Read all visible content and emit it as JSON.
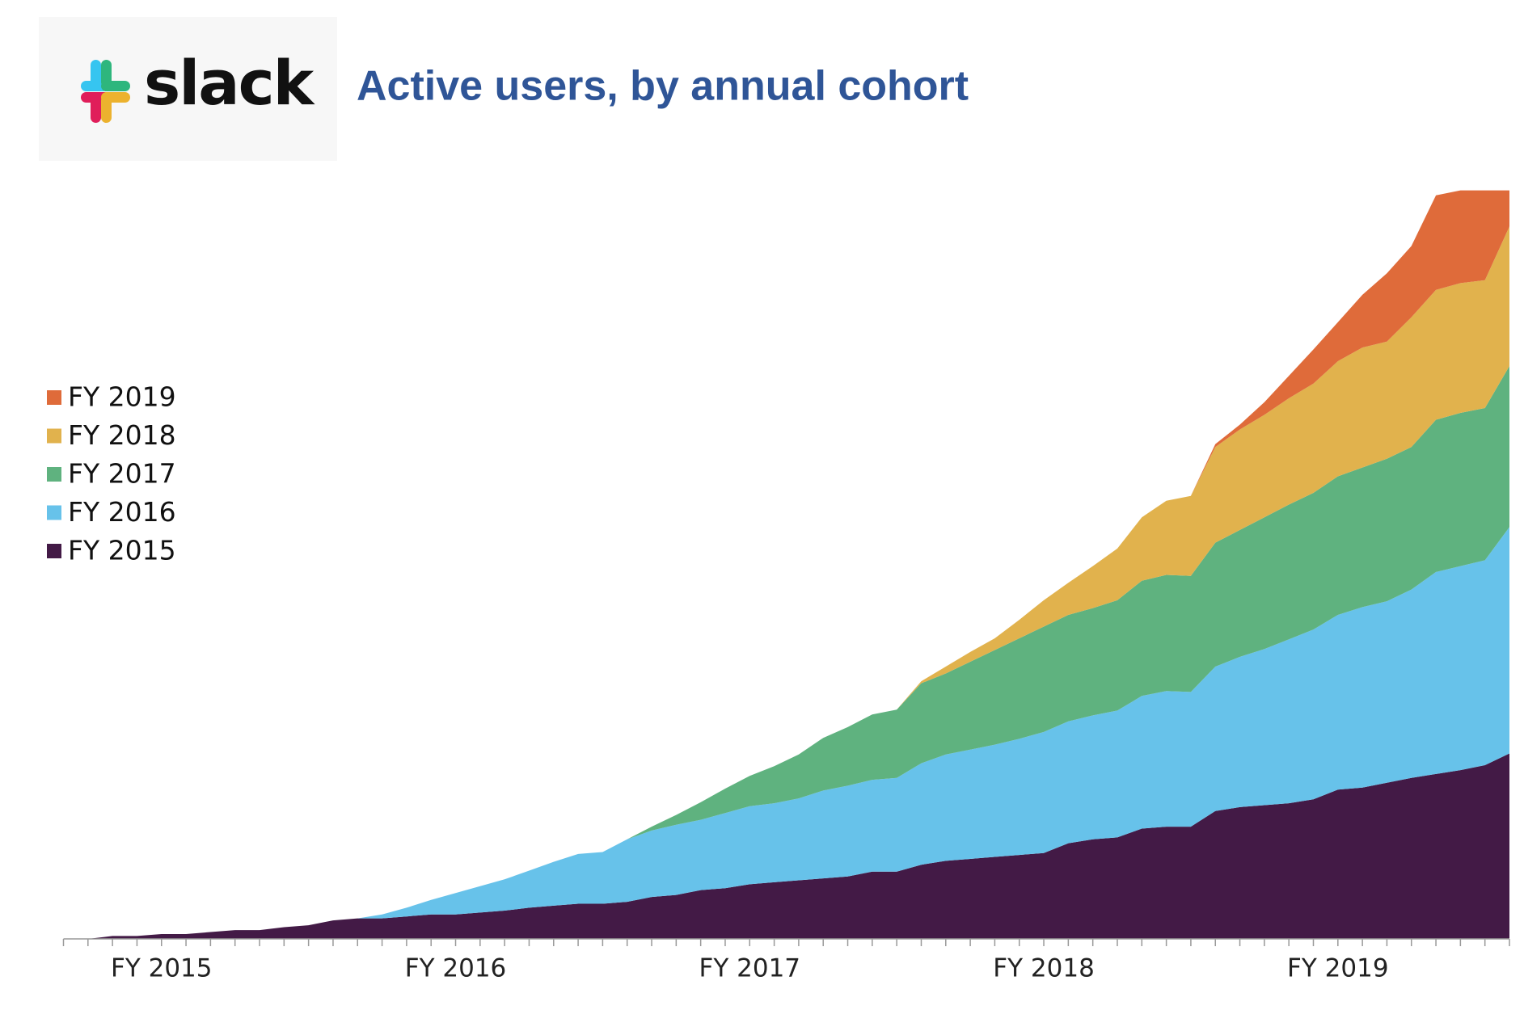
{
  "logo": "slack",
  "chart_data": {
    "type": "stacked_area",
    "title": "Active users, by annual cohort",
    "categories": [
      null,
      null,
      null,
      null,
      "FY 2015",
      null,
      null,
      null,
      null,
      null,
      null,
      null,
      null,
      null,
      null,
      null,
      "FY 2016",
      null,
      null,
      null,
      null,
      null,
      null,
      null,
      null,
      null,
      null,
      null,
      "FY 2017",
      null,
      null,
      null,
      null,
      null,
      null,
      null,
      null,
      null,
      null,
      null,
      "FY 2018",
      null,
      null,
      null,
      null,
      null,
      null,
      null,
      null,
      null,
      null,
      null,
      "FY 2019",
      null,
      null,
      null,
      null,
      null,
      null,
      null
    ],
    "ylim": [
      0,
      770
    ],
    "legend": "left",
    "series": [
      {
        "name": "FY 2015",
        "color": "#431a46",
        "values": [
          0,
          0,
          3,
          3,
          5,
          5,
          7,
          9,
          9,
          12,
          14,
          19,
          21,
          21,
          23,
          25,
          25,
          27,
          29,
          32,
          34,
          36,
          36,
          38,
          43,
          45,
          50,
          52,
          56,
          58,
          60,
          62,
          64,
          69,
          69,
          76,
          80,
          82,
          84,
          86,
          88,
          98,
          102,
          104,
          113,
          115,
          115,
          131,
          135,
          137,
          139,
          143,
          153,
          155,
          160,
          165,
          169,
          173,
          178,
          190
        ]
      },
      {
        "name": "FY 2016",
        "color": "#67c2ea",
        "values": [
          0,
          0,
          0,
          0,
          0,
          0,
          0,
          0,
          0,
          0,
          0,
          0,
          0,
          4,
          9,
          15,
          22,
          27,
          32,
          38,
          45,
          51,
          53,
          64,
          68,
          72,
          72,
          77,
          80,
          81,
          84,
          90,
          93,
          94,
          96,
          104,
          109,
          112,
          115,
          119,
          124,
          125,
          127,
          130,
          136,
          139,
          138,
          148,
          154,
          160,
          168,
          174,
          179,
          185,
          186,
          193,
          207,
          209,
          210,
          232
        ]
      },
      {
        "name": "FY 2017",
        "color": "#5fb27f",
        "values": [
          0,
          0,
          0,
          0,
          0,
          0,
          0,
          0,
          0,
          0,
          0,
          0,
          0,
          0,
          0,
          0,
          0,
          0,
          0,
          0,
          0,
          0,
          0,
          0,
          4,
          10,
          18,
          25,
          31,
          38,
          45,
          54,
          60,
          67,
          70,
          82,
          83,
          90,
          97,
          103,
          108,
          109,
          110,
          113,
          118,
          119,
          119,
          127,
          130,
          135,
          138,
          140,
          142,
          143,
          146,
          146,
          156,
          157,
          156,
          165
        ]
      },
      {
        "name": "FY 2018",
        "color": "#e1b24d",
        "values": [
          0,
          0,
          0,
          0,
          0,
          0,
          0,
          0,
          0,
          0,
          0,
          0,
          0,
          0,
          0,
          0,
          0,
          0,
          0,
          0,
          0,
          0,
          0,
          0,
          0,
          0,
          0,
          0,
          0,
          0,
          0,
          0,
          0,
          0,
          0,
          2,
          7,
          10,
          12,
          19,
          27,
          33,
          43,
          53,
          65,
          76,
          82,
          98,
          103,
          105,
          109,
          112,
          118,
          123,
          120,
          133,
          133,
          133,
          131,
          143
        ]
      },
      {
        "name": "FY 2019",
        "color": "#df6b3a",
        "values": [
          0,
          0,
          0,
          0,
          0,
          0,
          0,
          0,
          0,
          0,
          0,
          0,
          0,
          0,
          0,
          0,
          0,
          0,
          0,
          0,
          0,
          0,
          0,
          0,
          0,
          0,
          0,
          0,
          0,
          0,
          0,
          0,
          0,
          0,
          0,
          0,
          0,
          0,
          0,
          0,
          0,
          0,
          0,
          0,
          0,
          0,
          0,
          3,
          5,
          13,
          23,
          35,
          40,
          54,
          70,
          73,
          97,
          95,
          92,
          37
        ]
      }
    ]
  }
}
